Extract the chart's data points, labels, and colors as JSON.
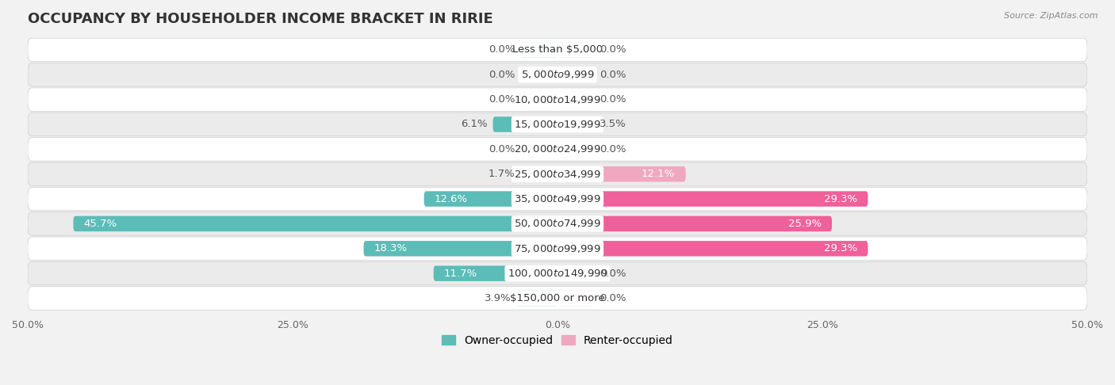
{
  "title": "OCCUPANCY BY HOUSEHOLDER INCOME BRACKET IN RIRIE",
  "source": "Source: ZipAtlas.com",
  "categories": [
    "Less than $5,000",
    "$5,000 to $9,999",
    "$10,000 to $14,999",
    "$15,000 to $19,999",
    "$20,000 to $24,999",
    "$25,000 to $34,999",
    "$35,000 to $49,999",
    "$50,000 to $74,999",
    "$75,000 to $99,999",
    "$100,000 to $149,999",
    "$150,000 or more"
  ],
  "owner_values": [
    0.0,
    0.0,
    0.0,
    6.1,
    0.0,
    1.7,
    12.6,
    45.7,
    18.3,
    11.7,
    3.9
  ],
  "renter_values": [
    0.0,
    0.0,
    0.0,
    3.5,
    0.0,
    12.1,
    29.3,
    25.9,
    29.3,
    0.0,
    0.0
  ],
  "owner_color": "#5bbcb8",
  "renter_color_light": "#f0a8c0",
  "renter_color_dark": "#f0609a",
  "renter_threshold": 20.0,
  "background_color": "#f2f2f2",
  "row_color_odd": "#ffffff",
  "row_color_even": "#ebebeb",
  "xlim": 50.0,
  "bar_height": 0.62,
  "min_bar": 3.5,
  "title_fontsize": 13,
  "label_fontsize": 9.5,
  "category_fontsize": 9.5,
  "legend_fontsize": 10,
  "axis_label_fontsize": 9
}
